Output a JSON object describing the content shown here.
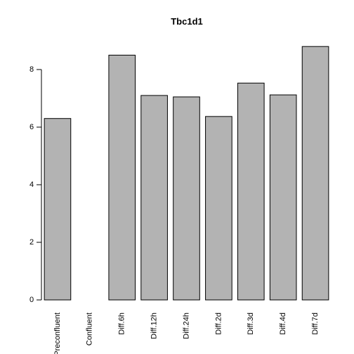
{
  "chart_data": {
    "type": "bar",
    "title": "Tbc1d1",
    "xlabel": "",
    "ylabel": "",
    "categories": [
      "Preconfluent",
      "Confluent",
      "Diff.6h",
      "Diff.12h",
      "Diff.24h",
      "Diff.2d",
      "Diff.3d",
      "Diff.4d",
      "Diff.7d"
    ],
    "values": [
      6.3,
      0.0,
      8.5,
      7.1,
      7.05,
      6.37,
      7.53,
      7.12,
      8.8
    ],
    "ylim": [
      0,
      9
    ],
    "yticks": [
      0,
      2,
      4,
      6,
      8
    ],
    "ytick_labels": [
      "0",
      "2",
      "4",
      "6",
      "8"
    ],
    "grid": false,
    "legend": "none",
    "colors": {
      "bar_fill": "#b3b3b3",
      "bar_stroke": "#000000"
    }
  }
}
